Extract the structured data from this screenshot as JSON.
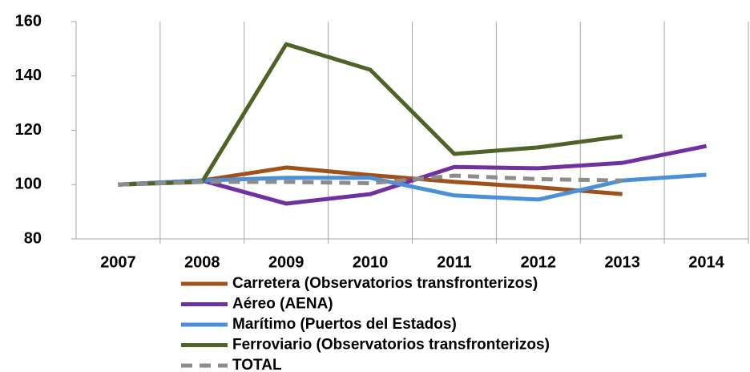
{
  "chart_data": {
    "type": "line",
    "categories": [
      "2007",
      "2008",
      "2009",
      "2010",
      "2011",
      "2012",
      "2013",
      "2014"
    ],
    "series": [
      {
        "name": "Carretera (Observatorios transfronterizos)",
        "color": "#a0501a",
        "values": [
          100,
          101.5,
          106.3,
          103.5,
          101,
          99,
          96.5,
          null
        ]
      },
      {
        "name": "Aéreo (AENA)",
        "color": "#7030a0",
        "values": [
          100,
          101.5,
          93,
          96.5,
          106.5,
          106,
          108,
          114.2
        ]
      },
      {
        "name": "Marítimo (Puertos del Estados)",
        "color": "#4a8fd8",
        "values": [
          100,
          101.5,
          102.5,
          102.5,
          96,
          94.5,
          101.5,
          103.6
        ]
      },
      {
        "name": "Ferroviario (Observatorios transfronterizos)",
        "color": "#4f6228",
        "values": [
          100,
          101,
          151.7,
          142.3,
          111.3,
          113.7,
          117.8,
          null
        ]
      },
      {
        "name": "TOTAL",
        "color": "#8c8c8c",
        "dash": true,
        "values": [
          100,
          101,
          101,
          100.5,
          103.3,
          102,
          101.5,
          null
        ]
      }
    ],
    "ylim": [
      80,
      160
    ],
    "yticks": [
      80,
      100,
      120,
      140,
      160
    ],
    "grid": true
  }
}
